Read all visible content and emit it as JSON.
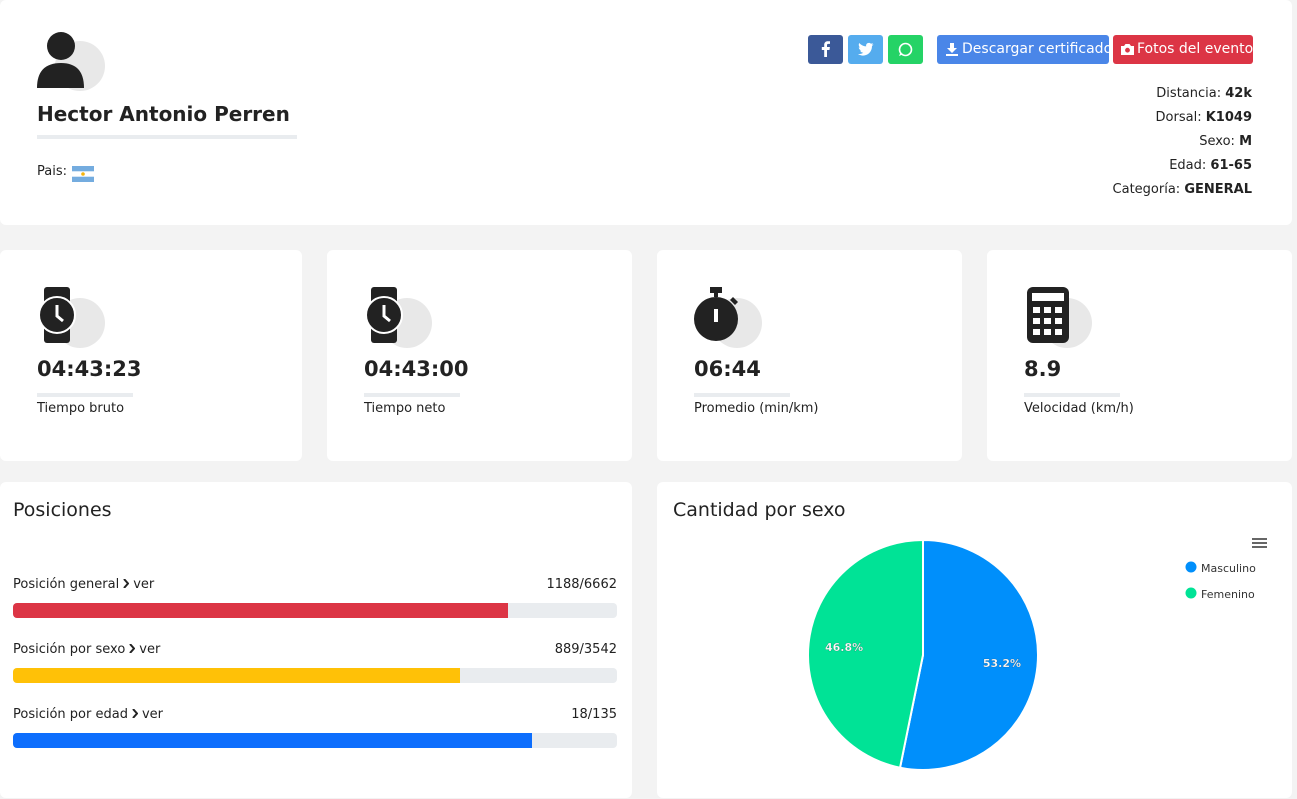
{
  "profile": {
    "name": "Hector Antonio Perren",
    "country_label": "Pais:"
  },
  "buttons": {
    "download": "Descargar certificado",
    "photos": "Fotos del evento"
  },
  "details": [
    {
      "label": "Distancia:",
      "value": "42k"
    },
    {
      "label": "Dorsal:",
      "value": "K1049"
    },
    {
      "label": "Sexo:",
      "value": "M"
    },
    {
      "label": "Edad:",
      "value": "61-65"
    },
    {
      "label": "Categoría:",
      "value": "GENERAL"
    }
  ],
  "stats": [
    {
      "value": "04:43:23",
      "label": "Tiempo bruto"
    },
    {
      "value": "04:43:00",
      "label": "Tiempo neto"
    },
    {
      "value": "06:44",
      "label": "Promedio (min/km)"
    },
    {
      "value": "8.9",
      "label": "Velocidad (km/h)"
    }
  ],
  "positions": {
    "title": "Posiciones",
    "link": "ver",
    "rows": [
      {
        "label": "Posición general",
        "result": "1188/6662",
        "fill": 82,
        "color": "#dc3545"
      },
      {
        "label": "Posición por sexo",
        "result": "889/3542",
        "fill": 74,
        "color": "#ffc107"
      },
      {
        "label": "Posición por edad",
        "result": "18/135",
        "fill": 86,
        "color": "#0d6efd"
      }
    ]
  },
  "chart_data": {
    "type": "pie",
    "title": "Cantidad por sexo",
    "categories": [
      "Masculino",
      "Femenino"
    ],
    "values": [
      53.2,
      46.8
    ],
    "value_labels": [
      "53.2%",
      "46.8%"
    ],
    "colors": [
      "#008ffb",
      "#00e396"
    ],
    "legend": "top-right"
  }
}
